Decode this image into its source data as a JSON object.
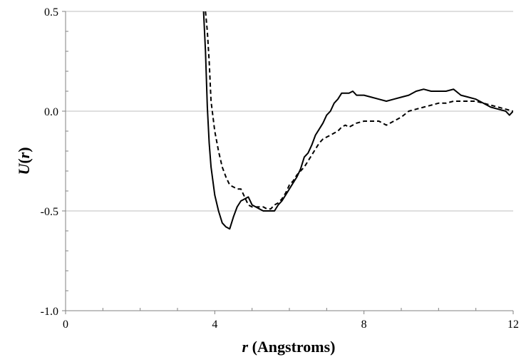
{
  "chart_data": {
    "type": "line",
    "xlabel": {
      "var": "r",
      "rest": " (Angstroms)"
    },
    "ylabel": {
      "var": "U",
      "open": "(",
      "var2": "r",
      "close": ")"
    },
    "xlim": [
      0,
      12
    ],
    "ylim": [
      -1.0,
      0.5
    ],
    "x_ticks": [
      0,
      4,
      8,
      12
    ],
    "x_tick_labels": [
      "0",
      "4",
      "8",
      "12"
    ],
    "y_ticks": [
      -1.0,
      -0.5,
      0.0,
      0.5
    ],
    "y_tick_labels": [
      "-1.0",
      "-0.5",
      "0.0",
      "0.5"
    ],
    "grid": "horizontal",
    "series": [
      {
        "style": "solid",
        "color": "#000000",
        "x": [
          3.7,
          3.75,
          3.8,
          3.85,
          3.9,
          4.0,
          4.1,
          4.2,
          4.3,
          4.4,
          4.5,
          4.6,
          4.7,
          4.8,
          4.9,
          5.0,
          5.1,
          5.2,
          5.3,
          5.4,
          5.5,
          5.6,
          5.7,
          5.8,
          5.9,
          6.0,
          6.1,
          6.2,
          6.3,
          6.4,
          6.5,
          6.6,
          6.7,
          6.8,
          6.9,
          7.0,
          7.1,
          7.2,
          7.3,
          7.4,
          7.5,
          7.6,
          7.7,
          7.8,
          7.9,
          8.0,
          8.2,
          8.4,
          8.6,
          8.8,
          9.0,
          9.2,
          9.4,
          9.6,
          9.8,
          10.0,
          10.2,
          10.4,
          10.6,
          10.8,
          11.0,
          11.2,
          11.4,
          11.6,
          11.8,
          11.9,
          12.0
        ],
        "y": [
          0.5,
          0.3,
          0.02,
          -0.16,
          -0.28,
          -0.42,
          -0.5,
          -0.56,
          -0.58,
          -0.59,
          -0.53,
          -0.48,
          -0.45,
          -0.44,
          -0.43,
          -0.47,
          -0.48,
          -0.49,
          -0.5,
          -0.5,
          -0.5,
          -0.5,
          -0.47,
          -0.45,
          -0.42,
          -0.39,
          -0.36,
          -0.33,
          -0.29,
          -0.23,
          -0.21,
          -0.17,
          -0.12,
          -0.09,
          -0.06,
          -0.02,
          0.0,
          0.04,
          0.06,
          0.09,
          0.09,
          0.09,
          0.1,
          0.08,
          0.08,
          0.08,
          0.07,
          0.06,
          0.05,
          0.06,
          0.07,
          0.08,
          0.1,
          0.11,
          0.1,
          0.1,
          0.1,
          0.11,
          0.08,
          0.07,
          0.06,
          0.04,
          0.02,
          0.01,
          0.0,
          -0.02,
          0.0
        ]
      },
      {
        "style": "dashed",
        "color": "#000000",
        "x": [
          3.75,
          3.8,
          3.85,
          3.9,
          4.0,
          4.1,
          4.2,
          4.3,
          4.4,
          4.5,
          4.6,
          4.7,
          4.8,
          4.9,
          5.0,
          5.1,
          5.2,
          5.3,
          5.4,
          5.5,
          5.6,
          5.7,
          5.8,
          5.9,
          6.0,
          6.1,
          6.2,
          6.3,
          6.4,
          6.5,
          6.6,
          6.7,
          6.8,
          6.9,
          7.0,
          7.1,
          7.2,
          7.3,
          7.4,
          7.5,
          7.6,
          7.8,
          8.0,
          8.2,
          8.4,
          8.6,
          8.8,
          9.0,
          9.2,
          9.4,
          9.6,
          9.8,
          10.0,
          10.2,
          10.4,
          10.6,
          10.8,
          11.0,
          11.2,
          11.4,
          11.6,
          11.8,
          12.0
        ],
        "y": [
          0.5,
          0.4,
          0.25,
          0.05,
          -0.1,
          -0.2,
          -0.28,
          -0.33,
          -0.37,
          -0.38,
          -0.39,
          -0.39,
          -0.43,
          -0.47,
          -0.48,
          -0.48,
          -0.48,
          -0.48,
          -0.49,
          -0.49,
          -0.47,
          -0.46,
          -0.44,
          -0.41,
          -0.37,
          -0.35,
          -0.32,
          -0.3,
          -0.28,
          -0.25,
          -0.22,
          -0.19,
          -0.16,
          -0.14,
          -0.13,
          -0.12,
          -0.11,
          -0.1,
          -0.08,
          -0.07,
          -0.08,
          -0.06,
          -0.05,
          -0.05,
          -0.05,
          -0.07,
          -0.05,
          -0.03,
          0.0,
          0.01,
          0.02,
          0.03,
          0.04,
          0.04,
          0.05,
          0.05,
          0.05,
          0.05,
          0.04,
          0.03,
          0.02,
          0.01,
          0.0
        ]
      }
    ]
  }
}
